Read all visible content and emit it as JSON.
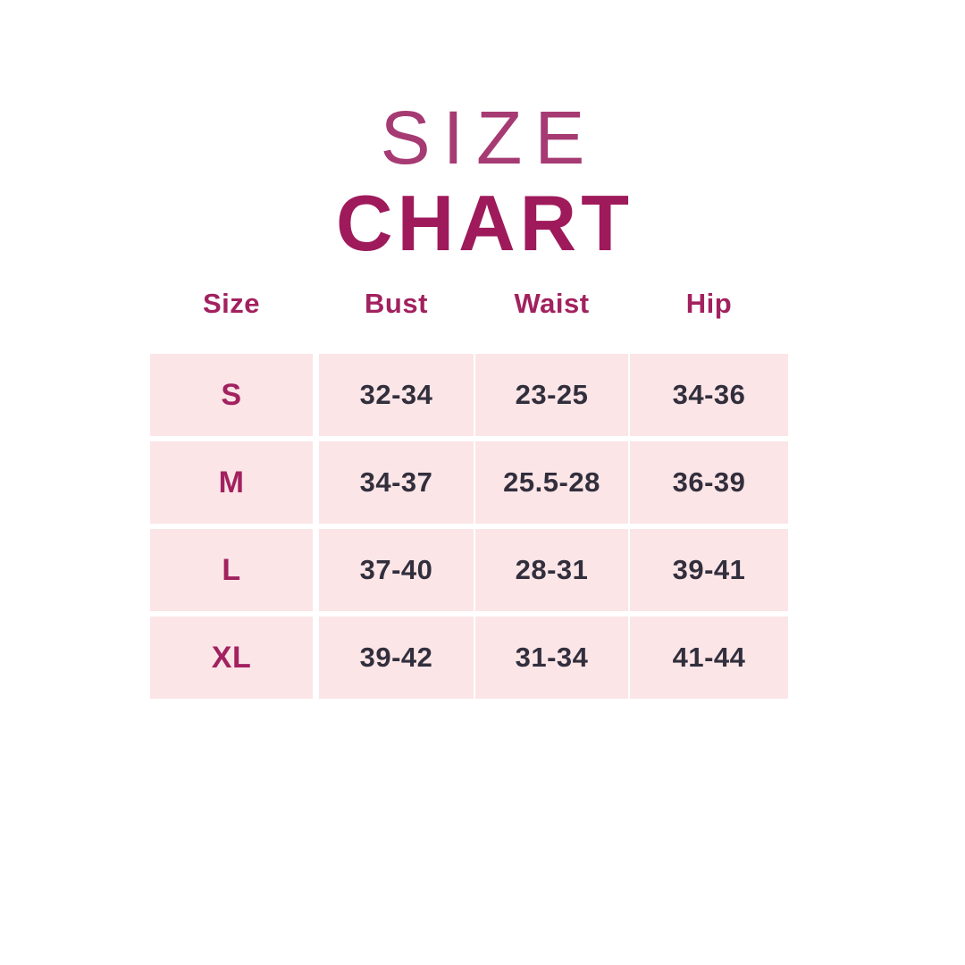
{
  "title": {
    "line1": "SIZE",
    "line2": "CHART"
  },
  "colors": {
    "page_bg": "#FFFFFF",
    "accent": "#A2215F",
    "title_light": "#A63A72",
    "title_bold": "#9E1A5B",
    "cell_bg": "#FBE5E7",
    "value_text": "#322F3D"
  },
  "chart_data": {
    "type": "table",
    "title": "SIZE CHART",
    "columns": [
      "Size",
      "Bust",
      "Waist",
      "Hip"
    ],
    "rows": [
      [
        "S",
        "32-34",
        "23-25",
        "34-36"
      ],
      [
        "M",
        "34-37",
        "25.5-28",
        "36-39"
      ],
      [
        "L",
        "37-40",
        "28-31",
        "39-41"
      ],
      [
        "XL",
        "39-42",
        "31-34",
        "41-44"
      ]
    ]
  }
}
